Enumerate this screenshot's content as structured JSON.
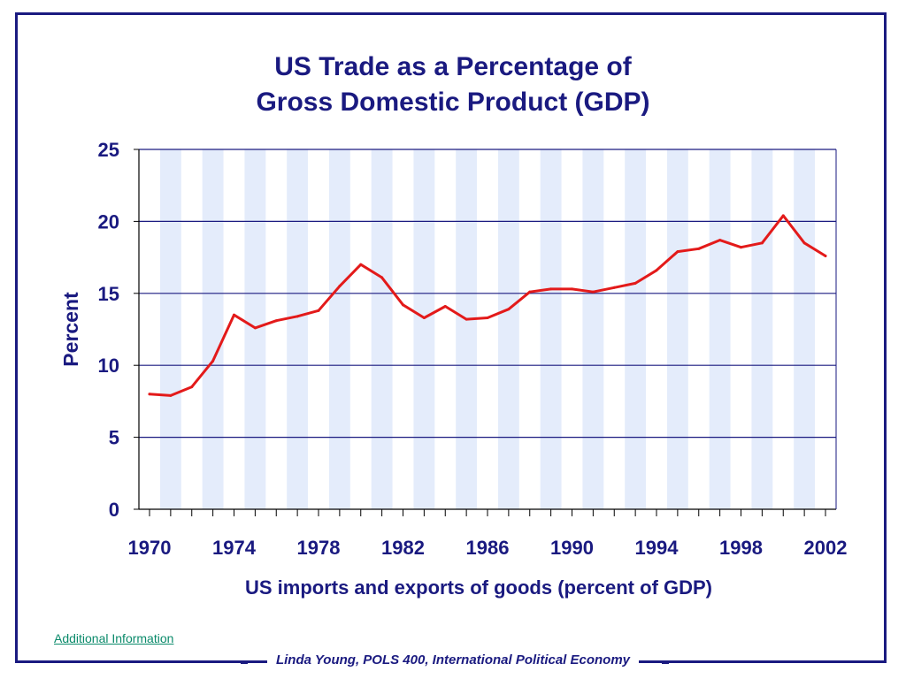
{
  "chart_data": {
    "type": "line",
    "title_lines": [
      "US Trade as a Percentage of",
      "Gross Domestic Product (GDP)"
    ],
    "xlabel": "US imports and exports of goods (percent of GDP)",
    "ylabel": "Percent",
    "xlim": [
      1970,
      2002
    ],
    "ylim": [
      0,
      25
    ],
    "y_ticks": [
      0,
      5,
      10,
      15,
      20,
      25
    ],
    "x_tick_labels": [
      "1970",
      "1974",
      "1978",
      "1982",
      "1986",
      "1990",
      "1994",
      "1998",
      "2002"
    ],
    "grid": "horizontal",
    "series": [
      {
        "color": "#e31a1a",
        "x": [
          1970,
          1971,
          1972,
          1973,
          1974,
          1975,
          1976,
          1977,
          1978,
          1979,
          1980,
          1981,
          1982,
          1983,
          1984,
          1985,
          1986,
          1987,
          1988,
          1989,
          1990,
          1991,
          1992,
          1993,
          1994,
          1995,
          1996,
          1997,
          1998,
          1999,
          2000,
          2001,
          2002
        ],
        "values": [
          8.0,
          7.9,
          8.5,
          10.3,
          13.5,
          12.6,
          13.1,
          13.4,
          13.8,
          15.5,
          17.0,
          16.1,
          14.2,
          13.3,
          14.1,
          13.2,
          13.3,
          13.9,
          15.1,
          15.3,
          15.3,
          15.1,
          15.4,
          15.7,
          16.6,
          17.9,
          18.1,
          18.7,
          18.2,
          18.5,
          20.4,
          18.5,
          17.6
        ]
      }
    ],
    "colors": {
      "band": "#e4ecfb",
      "gridline": "#1a1a80",
      "axis_text": "#1a1a80"
    }
  },
  "links": {
    "additional_info": "Additional Information"
  },
  "footer": {
    "credit": "Linda Young, POLS 400, International Political Economy"
  }
}
